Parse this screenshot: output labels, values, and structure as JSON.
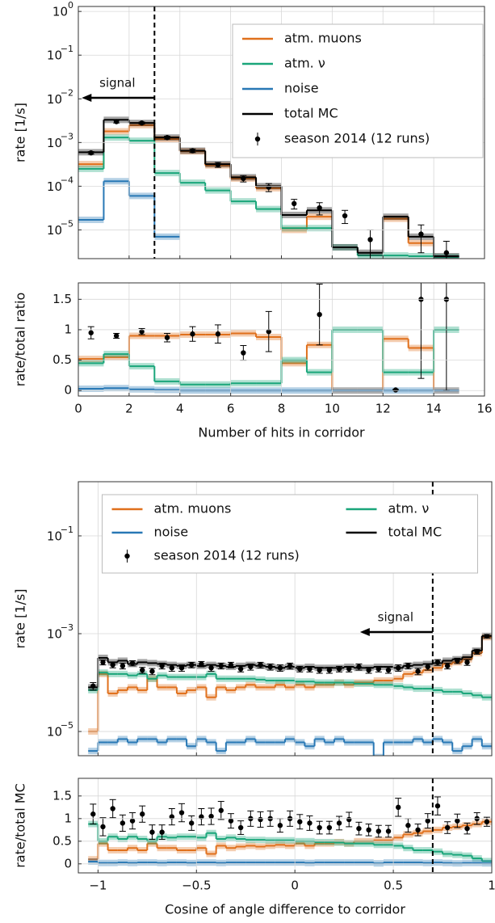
{
  "chart_data": [
    {
      "type": "histogram",
      "ylabel": "rate [1/s]",
      "log_y": true,
      "grid": true,
      "legend": "upper right",
      "legend_columns": 1,
      "xlim": [
        0,
        16
      ],
      "xticks": [
        0,
        2,
        4,
        6,
        8,
        10,
        12,
        14,
        16
      ],
      "xtick_labels": false,
      "ylim": [
        2.2e-06,
        1.3
      ],
      "yticks": [
        {
          "value": 1,
          "label": "10",
          "exponent": "0"
        },
        {
          "value": 0.1,
          "label": "10",
          "exponent": "−1"
        },
        {
          "value": 0.01,
          "label": "10",
          "exponent": "−2"
        },
        {
          "value": 0.001,
          "label": "10",
          "exponent": "−3"
        },
        {
          "value": 0.0001,
          "label": "10",
          "exponent": "−4"
        },
        {
          "value": 1e-05,
          "label": "10",
          "exponent": "−5"
        }
      ],
      "vline": 3,
      "annotation": "signal",
      "bins": [
        0,
        1,
        2,
        3,
        4,
        5,
        6,
        7,
        8,
        9,
        10,
        11,
        12,
        13,
        14,
        15
      ],
      "series": [
        {
          "name": "atm. muons",
          "color": "#e0701c",
          "style": "step",
          "values": [
            0.00032,
            0.0018,
            0.0025,
            0.0012,
            0.00063,
            0.0003,
            0.00015,
            9e-05,
            1e-05,
            2e-05,
            null,
            null,
            1.8e-05,
            5e-06,
            null
          ]
        },
        {
          "name": "atm. ν",
          "color": "#1aa67a",
          "style": "step",
          "values": [
            0.00025,
            0.0013,
            0.0011,
            0.0002,
            0.00012,
            8e-05,
            4.5e-05,
            3e-05,
            1.1e-05,
            1.1e-05,
            4e-06,
            2.6e-06,
            2.6e-06,
            2.5e-06,
            2.4e-06
          ]
        },
        {
          "name": "noise",
          "color": "#2878b5",
          "style": "step",
          "values": [
            1.7e-05,
            0.00013,
            6e-05,
            7e-06,
            null,
            null,
            null,
            null,
            null,
            null,
            null,
            null,
            null,
            null,
            null
          ]
        },
        {
          "name": "total MC",
          "color": "#000000",
          "style": "step",
          "values": [
            0.0006,
            0.0033,
            0.0028,
            0.0013,
            0.00065,
            0.00032,
            0.00016,
            0.0001,
            2.2e-05,
            2.8e-05,
            4e-06,
            3e-06,
            2e-05,
            7e-06,
            2.5e-06
          ]
        },
        {
          "name": "season 2014 (12 runs)",
          "color": "#000000",
          "style": "points",
          "values": [
            0.00058,
            0.003,
            0.0028,
            0.0013,
            0.00065,
            0.00031,
            0.00015,
            9.5e-05,
            4e-05,
            3.2e-05,
            2.1e-05,
            6e-06,
            null,
            8e-06,
            3e-06
          ],
          "errors": [
            4e-05,
            0.0002,
            0.00015,
            0.0001,
            6e-05,
            4e-05,
            2.5e-05,
            2e-05,
            1e-05,
            1e-05,
            7e-06,
            4e-06,
            null,
            5e-06,
            2.5e-06
          ]
        }
      ]
    },
    {
      "type": "histogram",
      "ylabel": "rate/total ratio",
      "xlabel": "Number of hits in corridor",
      "log_y": false,
      "grid": true,
      "xlim": [
        0,
        16
      ],
      "xticks": [
        0,
        2,
        4,
        6,
        8,
        10,
        12,
        14,
        16
      ],
      "xtick_labels": true,
      "ylim": [
        -0.09,
        1.77
      ],
      "yticks": [
        0,
        0.5,
        1,
        1.5
      ],
      "bins": [
        0,
        1,
        2,
        3,
        4,
        5,
        6,
        7,
        8,
        9,
        10,
        11,
        12,
        13,
        14,
        15
      ],
      "series": [
        {
          "color": "#e0701c",
          "style": "step",
          "values": [
            0.52,
            0.55,
            0.9,
            0.9,
            0.92,
            0.92,
            0.94,
            0.88,
            0.45,
            0.75,
            0,
            0,
            0.85,
            0.7,
            0
          ]
        },
        {
          "color": "#1aa67a",
          "style": "step",
          "values": [
            0.45,
            0.6,
            0.4,
            0.15,
            0.1,
            0.1,
            0.12,
            0.12,
            0.5,
            0.3,
            1,
            1,
            0.3,
            0.3,
            1
          ]
        },
        {
          "color": "#2878b5",
          "style": "step",
          "values": [
            0.03,
            0.04,
            0.02,
            0.01,
            0,
            0,
            0,
            0,
            0,
            0,
            0,
            0,
            0,
            0,
            0
          ]
        },
        {
          "color": "#000000",
          "style": "points",
          "values": [
            0.95,
            0.9,
            0.97,
            0.87,
            0.93,
            0.93,
            0.62,
            0.97,
            null,
            1.25,
            null,
            null,
            0.01,
            1.5,
            1.5
          ],
          "errors": [
            0.1,
            0.04,
            0.05,
            0.07,
            0.12,
            0.15,
            0.12,
            0.33,
            null,
            0.5,
            null,
            null,
            0.01,
            1.3,
            1.5
          ]
        }
      ]
    },
    {
      "type": "histogram",
      "ylabel": "rate [1/s]",
      "log_y": true,
      "grid": true,
      "legend": "upper center",
      "legend_columns": 2,
      "xlim": [
        -1.1,
        1.0
      ],
      "xticks": [
        -1,
        -0.5,
        0,
        0.5,
        1
      ],
      "xtick_labels": false,
      "ylim": [
        3.2e-06,
        1.28
      ],
      "yticks": [
        {
          "value": 0.1,
          "label": "10",
          "exponent": "−1"
        },
        {
          "value": 0.001,
          "label": "10",
          "exponent": "−3"
        },
        {
          "value": 1e-05,
          "label": "10",
          "exponent": "−5"
        }
      ],
      "vline": 0.7,
      "annotation": "signal",
      "bins": [
        -1.05,
        -1,
        -0.95,
        -0.9,
        -0.85,
        -0.8,
        -0.75,
        -0.7,
        -0.65,
        -0.6,
        -0.55,
        -0.5,
        -0.45,
        -0.4,
        -0.35,
        -0.3,
        -0.25,
        -0.2,
        -0.15,
        -0.1,
        -0.05,
        0,
        0.05,
        0.1,
        0.15,
        0.2,
        0.25,
        0.3,
        0.35,
        0.4,
        0.45,
        0.5,
        0.55,
        0.6,
        0.65,
        0.7,
        0.75,
        0.8,
        0.85,
        0.9,
        0.95,
        1
      ],
      "series": [
        {
          "name": "atm. muons",
          "color": "#e0701c",
          "style": "step",
          "values": [
            1e-05,
            0.00015,
            6e-05,
            7e-05,
            8e-05,
            7e-05,
            0.00012,
            8e-05,
            8e-05,
            6e-05,
            7e-05,
            8e-05,
            5e-05,
            8e-05,
            7e-05,
            8e-05,
            9e-05,
            8e-05,
            8e-05,
            9e-05,
            8e-05,
            9e-05,
            8e-05,
            9e-05,
            9e-05,
            0.0001,
            9e-05,
            0.0001,
            0.0001,
            0.00011,
            0.00011,
            0.00012,
            0.00015,
            0.00016,
            0.00018,
            0.0002,
            0.00024,
            0.00026,
            0.0003,
            0.0004,
            0.00085
          ]
        },
        {
          "name": "atm. ν",
          "color": "#1aa67a",
          "style": "step",
          "values": [
            7e-05,
            0.00016,
            0.00015,
            0.00015,
            0.00014,
            0.00015,
            0.00012,
            0.00014,
            0.00013,
            0.00013,
            0.00013,
            0.00013,
            0.00015,
            0.00012,
            0.00012,
            0.00012,
            0.00012,
            0.000115,
            0.00011,
            0.00011,
            0.00011,
            0.000105,
            0.000105,
            0.0001,
            0.0001,
            0.0001,
            0.0001,
            9.5e-05,
            9.5e-05,
            9e-05,
            9e-05,
            8.5e-05,
            8e-05,
            7.5e-05,
            7.5e-05,
            7e-05,
            6.5e-05,
            6.5e-05,
            6e-05,
            5.5e-05,
            5e-05
          ]
        },
        {
          "name": "noise",
          "color": "#2878b5",
          "style": "step",
          "values": [
            4e-06,
            6e-06,
            6e-06,
            7e-06,
            6e-06,
            7e-06,
            7e-06,
            6e-06,
            7e-06,
            7e-06,
            5e-06,
            7e-06,
            6e-06,
            4e-06,
            6e-06,
            6e-06,
            7e-06,
            6e-06,
            6e-06,
            6e-06,
            7e-06,
            6e-06,
            5e-06,
            7e-06,
            6e-06,
            7e-06,
            6e-06,
            6e-06,
            6e-06,
            3e-06,
            6e-06,
            6e-06,
            6e-06,
            7e-06,
            6e-06,
            7e-06,
            6e-06,
            4e-06,
            5e-06,
            7e-06,
            5e-06
          ]
        },
        {
          "name": "total MC",
          "color": "#000000",
          "style": "step",
          "values": [
            8e-05,
            0.00032,
            0.00026,
            0.00028,
            0.00024,
            0.00026,
            0.00025,
            0.00024,
            0.00023,
            0.00022,
            0.00023,
            0.00022,
            0.00023,
            0.00022,
            0.00021,
            0.00022,
            0.00023,
            0.00022,
            0.00021,
            0.0002,
            0.00021,
            0.0002,
            0.00021,
            0.0002,
            0.0002,
            0.0002,
            0.00021,
            0.0002,
            0.0002,
            0.00021,
            0.00021,
            0.0002,
            0.00022,
            0.00023,
            0.00024,
            0.00025,
            0.00028,
            0.0003,
            0.00033,
            0.00045,
            0.0009
          ]
        },
        {
          "name": "season 2014 (12 runs)",
          "color": "#000000",
          "style": "points",
          "values": [
            8.5e-05,
            0.00026,
            0.00023,
            0.00022,
            0.00025,
            0.00018,
            0.00017,
            0.00022,
            0.0002,
            0.0002,
            0.00023,
            0.00024,
            0.0002,
            0.00022,
            0.00023,
            0.00019,
            0.00021,
            0.00023,
            0.00021,
            0.0002,
            0.00022,
            0.00019,
            0.00019,
            0.00018,
            0.00018,
            0.00019,
            0.00019,
            0.00021,
            0.00018,
            0.00019,
            0.00018,
            0.0002,
            0.00022,
            0.00017,
            0.00021,
            0.00026,
            0.00022,
            0.00028,
            0.00026,
            0.00043,
            0.0009
          ],
          "errors": [
            1.5e-05,
            3e-05,
            3e-05,
            3e-05,
            3e-05,
            2.5e-05,
            2.5e-05,
            3e-05,
            3e-05,
            3e-05,
            3e-05,
            3e-05,
            3e-05,
            3e-05,
            3e-05,
            2.5e-05,
            3e-05,
            3e-05,
            3e-05,
            3e-05,
            3e-05,
            2.5e-05,
            2.5e-05,
            2.5e-05,
            2.5e-05,
            2.5e-05,
            2.5e-05,
            3e-05,
            2.5e-05,
            2.5e-05,
            2.5e-05,
            3e-05,
            3e-05,
            2.5e-05,
            3e-05,
            3.5e-05,
            3e-05,
            3.5e-05,
            3.5e-05,
            5e-05,
            8e-05
          ]
        }
      ]
    },
    {
      "type": "histogram",
      "ylabel": "rate/total MC",
      "xlabel": "Cosine of angle difference to corridor",
      "log_y": false,
      "grid": true,
      "xlim": [
        -1.1,
        1.0
      ],
      "xticks": [
        {
          "value": -1,
          "label": "−1"
        },
        {
          "value": -0.5,
          "label": "−0.5"
        },
        0,
        0.5,
        1
      ],
      "xtick_labels": true,
      "ylim": [
        -0.2,
        1.89
      ],
      "yticks": [
        0,
        0.5,
        1,
        1.5
      ],
      "vline": 0.7,
      "bins": [
        -1.05,
        -1,
        -0.95,
        -0.9,
        -0.85,
        -0.8,
        -0.75,
        -0.7,
        -0.65,
        -0.6,
        -0.55,
        -0.5,
        -0.45,
        -0.4,
        -0.35,
        -0.3,
        -0.25,
        -0.2,
        -0.15,
        -0.1,
        -0.05,
        0,
        0.05,
        0.1,
        0.15,
        0.2,
        0.25,
        0.3,
        0.35,
        0.4,
        0.45,
        0.5,
        0.55,
        0.6,
        0.65,
        0.7,
        0.75,
        0.8,
        0.85,
        0.9,
        0.95,
        1
      ],
      "series": [
        {
          "color": "#e0701c",
          "style": "step",
          "values": [
            0.1,
            0.45,
            0.3,
            0.3,
            0.35,
            0.3,
            0.45,
            0.35,
            0.35,
            0.3,
            0.3,
            0.35,
            0.22,
            0.4,
            0.35,
            0.38,
            0.4,
            0.38,
            0.4,
            0.42,
            0.4,
            0.45,
            0.4,
            0.45,
            0.45,
            0.48,
            0.45,
            0.5,
            0.5,
            0.52,
            0.52,
            0.58,
            0.65,
            0.68,
            0.72,
            0.75,
            0.8,
            0.82,
            0.85,
            0.88,
            0.93
          ]
        },
        {
          "color": "#1aa67a",
          "style": "step",
          "values": [
            0.88,
            0.5,
            0.6,
            0.55,
            0.6,
            0.55,
            0.5,
            0.6,
            0.58,
            0.6,
            0.6,
            0.58,
            0.68,
            0.55,
            0.58,
            0.55,
            0.53,
            0.53,
            0.52,
            0.52,
            0.52,
            0.5,
            0.5,
            0.48,
            0.48,
            0.47,
            0.45,
            0.45,
            0.45,
            0.42,
            0.42,
            0.4,
            0.35,
            0.3,
            0.3,
            0.27,
            0.22,
            0.2,
            0.18,
            0.12,
            0.06
          ]
        },
        {
          "color": "#2878b5",
          "style": "step",
          "values": [
            0.05,
            0.02,
            0.02,
            0.03,
            0.02,
            0.03,
            0.03,
            0.02,
            0.03,
            0.03,
            0.02,
            0.03,
            0.03,
            0.02,
            0.03,
            0.03,
            0.03,
            0.03,
            0.03,
            0.03,
            0.03,
            0.03,
            0.02,
            0.03,
            0.03,
            0.03,
            0.03,
            0.03,
            0.03,
            0.01,
            0.03,
            0.03,
            0.03,
            0.03,
            0.02,
            0.03,
            0.02,
            0.01,
            0.02,
            0.02,
            0.01
          ]
        },
        {
          "color": "#000000",
          "style": "points",
          "values": [
            1.1,
            0.82,
            1.22,
            0.9,
            0.95,
            1.1,
            0.7,
            0.7,
            1.04,
            1.13,
            0.9,
            1.04,
            1.05,
            1.18,
            0.95,
            0.8,
            1.0,
            0.98,
            1.0,
            0.85,
            1.0,
            0.93,
            0.9,
            0.8,
            0.8,
            0.9,
            0.98,
            0.78,
            0.75,
            0.72,
            0.72,
            1.25,
            0.85,
            0.75,
            0.95,
            1.28,
            0.8,
            0.95,
            0.78,
            1.0,
            0.93
          ],
          "errors": [
            0.22,
            0.2,
            0.2,
            0.18,
            0.18,
            0.18,
            0.16,
            0.16,
            0.18,
            0.2,
            0.16,
            0.18,
            0.18,
            0.2,
            0.16,
            0.15,
            0.17,
            0.17,
            0.17,
            0.15,
            0.17,
            0.16,
            0.16,
            0.14,
            0.14,
            0.15,
            0.16,
            0.14,
            0.13,
            0.13,
            0.13,
            0.2,
            0.15,
            0.13,
            0.16,
            0.2,
            0.13,
            0.15,
            0.12,
            0.13,
            0.1
          ]
        }
      ]
    }
  ]
}
